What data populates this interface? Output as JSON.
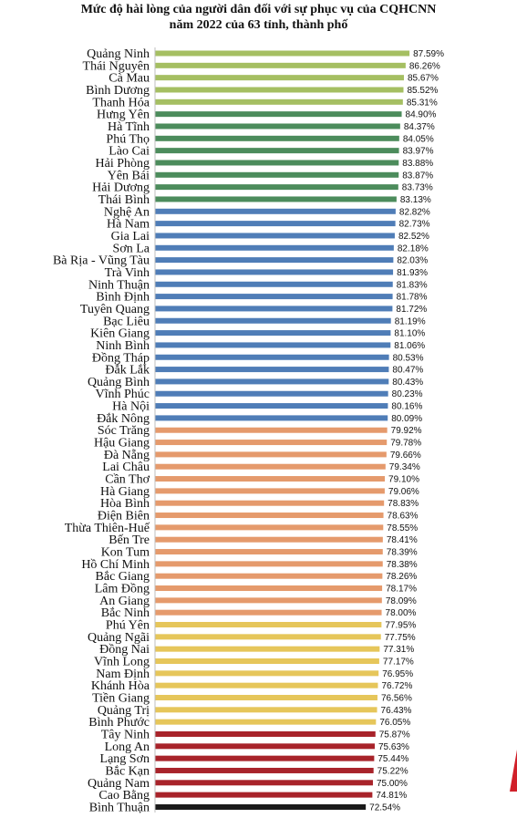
{
  "chart_data": {
    "type": "bar",
    "orientation": "horizontal",
    "title": "Mức độ hài lòng của người dân đối với sự phục vụ của CQHCNN năm 2022 của 63 tỉnh, thành phố",
    "title_lines": [
      "Mức độ hài lòng của người dân đối với sự phục vụ của CQHCNN",
      "năm 2022 của 63 tỉnh, thành phố"
    ],
    "xlabel": "",
    "ylabel": "",
    "xlim": [
      0,
      88.5
    ],
    "grid": false,
    "legend": "none",
    "value_format": "percent",
    "categories": [
      "Quảng Ninh",
      "Thái Nguyên",
      "Cà Mau",
      "Bình Dương",
      "Thanh Hóa",
      "Hưng Yên",
      "Hà Tĩnh",
      "Phú Thọ",
      "Lào Cai",
      "Hải Phòng",
      "Yên Bái",
      "Hải Dương",
      "Thái Bình",
      "Nghệ An",
      "Hà Nam",
      "Gia Lai",
      "Sơn La",
      "Bà Rịa - Vũng Tàu",
      "Trà Vinh",
      "Ninh Thuận",
      "Bình Định",
      "Tuyên Quang",
      "Bạc Liêu",
      "Kiên Giang",
      "Ninh Bình",
      "Đồng Tháp",
      "Đắk Lắk",
      "Quảng Bình",
      "Vĩnh Phúc",
      "Hà Nội",
      "Đắk Nông",
      "Sóc Trăng",
      "Hậu Giang",
      "Đà Nẵng",
      "Lai Châu",
      "Cần Thơ",
      "Hà Giang",
      "Hòa Bình",
      "Điện Biên",
      "Thừa Thiên-Huế",
      "Bến Tre",
      "Kon Tum",
      "Hồ Chí Minh",
      "Bắc Giang",
      "Lâm Đồng",
      "An Giang",
      "Bắc Ninh",
      "Phú Yên",
      "Quảng Ngãi",
      "Đồng Nai",
      "Vĩnh Long",
      "Nam Định",
      "Khánh Hòa",
      "Tiền Giang",
      "Quảng Trị",
      "Bình Phước",
      "Tây Ninh",
      "Long An",
      "Lạng Sơn",
      "Bắc Kạn",
      "Quảng Nam",
      "Cao Bằng",
      "Bình Thuận"
    ],
    "values": [
      87.59,
      86.26,
      85.67,
      85.52,
      85.31,
      84.9,
      84.37,
      84.05,
      83.97,
      83.88,
      83.87,
      83.73,
      83.13,
      82.82,
      82.73,
      82.52,
      82.18,
      82.03,
      81.93,
      81.83,
      81.78,
      81.72,
      81.19,
      81.1,
      81.06,
      80.53,
      80.47,
      80.43,
      80.23,
      80.16,
      80.09,
      79.92,
      79.78,
      79.66,
      79.34,
      79.1,
      79.06,
      78.83,
      78.63,
      78.55,
      78.41,
      78.39,
      78.38,
      78.26,
      78.17,
      78.09,
      78.0,
      77.95,
      77.75,
      77.31,
      77.17,
      76.95,
      76.72,
      76.56,
      76.43,
      76.05,
      75.87,
      75.63,
      75.44,
      75.22,
      75.0,
      74.81,
      72.54
    ],
    "data_labels": [
      "87.59%",
      "86.26%",
      "85.67%",
      "85.52%",
      "85.31%",
      "84.90%",
      "84.37%",
      "84.05%",
      "83.97%",
      "83.88%",
      "83.87%",
      "83.73%",
      "83.13%",
      "82.82%",
      "82.73%",
      "82.52%",
      "82.18%",
      "82.03%",
      "81.93%",
      "81.83%",
      "81.78%",
      "81.72%",
      "81.19%",
      "81.10%",
      "81.06%",
      "80.53%",
      "80.47%",
      "80.43%",
      "80.23%",
      "80.16%",
      "80.09%",
      "79.92%",
      "79.78%",
      "79.66%",
      "79.34%",
      "79.10%",
      "79.06%",
      "78.83%",
      "78.63%",
      "78.55%",
      "78.41%",
      "78.39%",
      "78.38%",
      "78.26%",
      "78.17%",
      "78.09%",
      "78.00%",
      "77.95%",
      "77.75%",
      "77.31%",
      "77.17%",
      "76.95%",
      "76.72%",
      "76.56%",
      "76.43%",
      "76.05%",
      "75.87%",
      "75.63%",
      "75.44%",
      "75.22%",
      "75.00%",
      "74.81%",
      "72.54%"
    ],
    "color_groups": [
      {
        "count": 5,
        "color": "#a5bf62"
      },
      {
        "count": 8,
        "color": "#4c8c5c"
      },
      {
        "count": 18,
        "color": "#4f7db7"
      },
      {
        "count": 16,
        "color": "#e59a6c"
      },
      {
        "count": 9,
        "color": "#e6c65a"
      },
      {
        "count": 6,
        "color": "#a8232a"
      },
      {
        "count": 1,
        "color": "#1a1a1a"
      }
    ]
  }
}
